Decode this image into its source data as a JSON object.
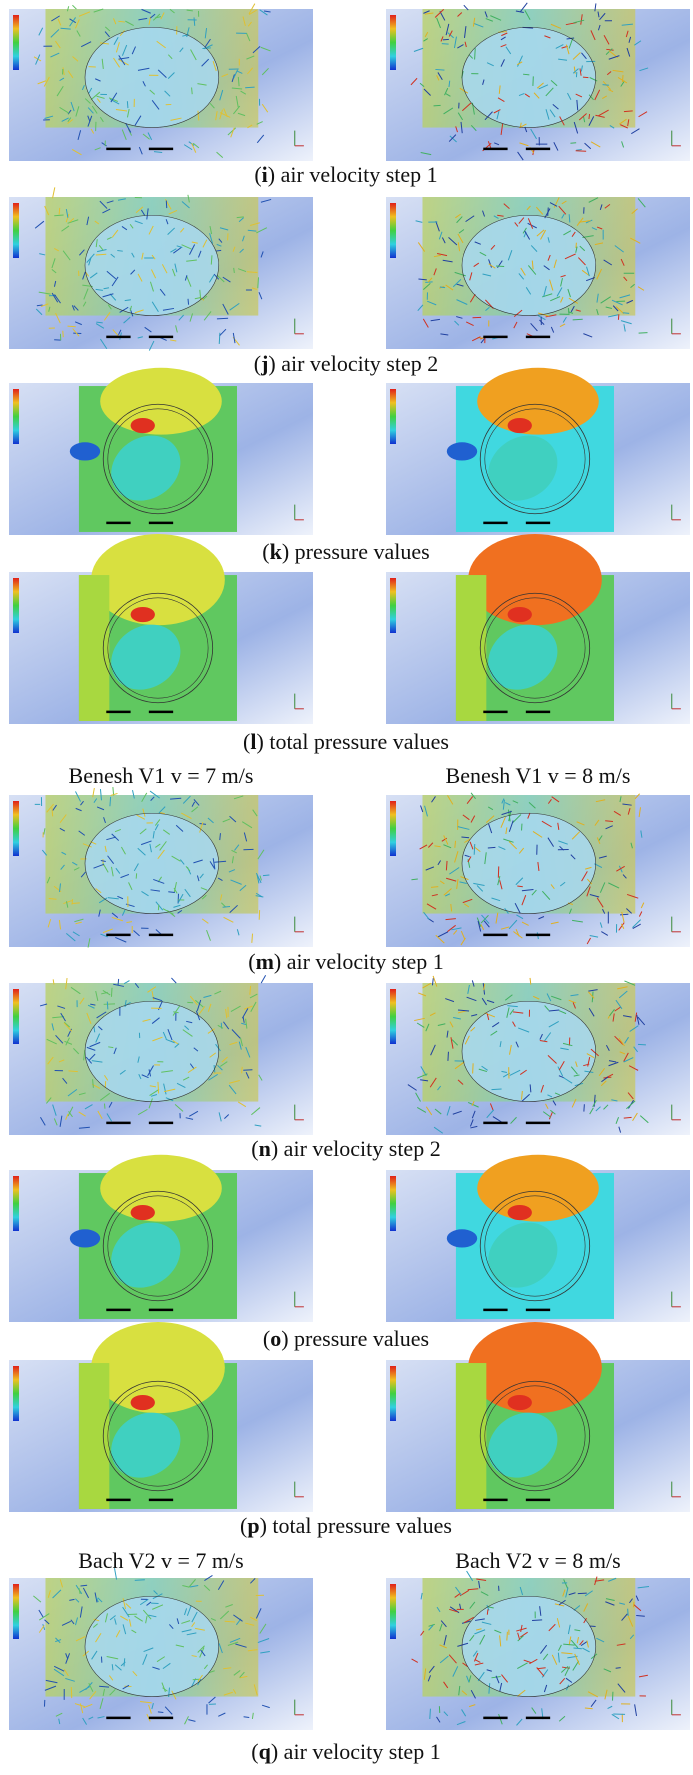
{
  "rows": [
    {
      "style": "velocity",
      "caption": [
        "(",
        "i",
        ") air velocity step 1"
      ]
    },
    {
      "style": "velocity",
      "caption": [
        "(",
        "j",
        ") air velocity step 2"
      ]
    },
    {
      "style": "pressure",
      "caption": [
        "(",
        "k",
        ") pressure values"
      ]
    },
    {
      "style": "total_pressure",
      "caption": [
        "(",
        "l",
        ") total pressure values"
      ]
    },
    {
      "style": "velocity",
      "caption": [
        "(",
        "m",
        ") air velocity step 1"
      ]
    },
    {
      "style": "velocity",
      "caption": [
        "(",
        "n",
        ") air velocity step 2"
      ]
    },
    {
      "style": "pressure",
      "caption": [
        "(",
        "o",
        ") pressure values"
      ]
    },
    {
      "style": "total_pressure",
      "caption": [
        "(",
        "p",
        ") total pressure values"
      ]
    },
    {
      "style": "velocity",
      "caption": [
        "(",
        "q",
        ") air velocity step 1"
      ]
    }
  ],
  "groups": [
    {
      "left": "Benesh V1 v = 7 m/s",
      "right": "Benesh V1 v = 8 m/s"
    },
    {
      "left": "Bach V2 v = 7 m/s",
      "right": "Bach V2 v = 8 m/s"
    }
  ]
}
